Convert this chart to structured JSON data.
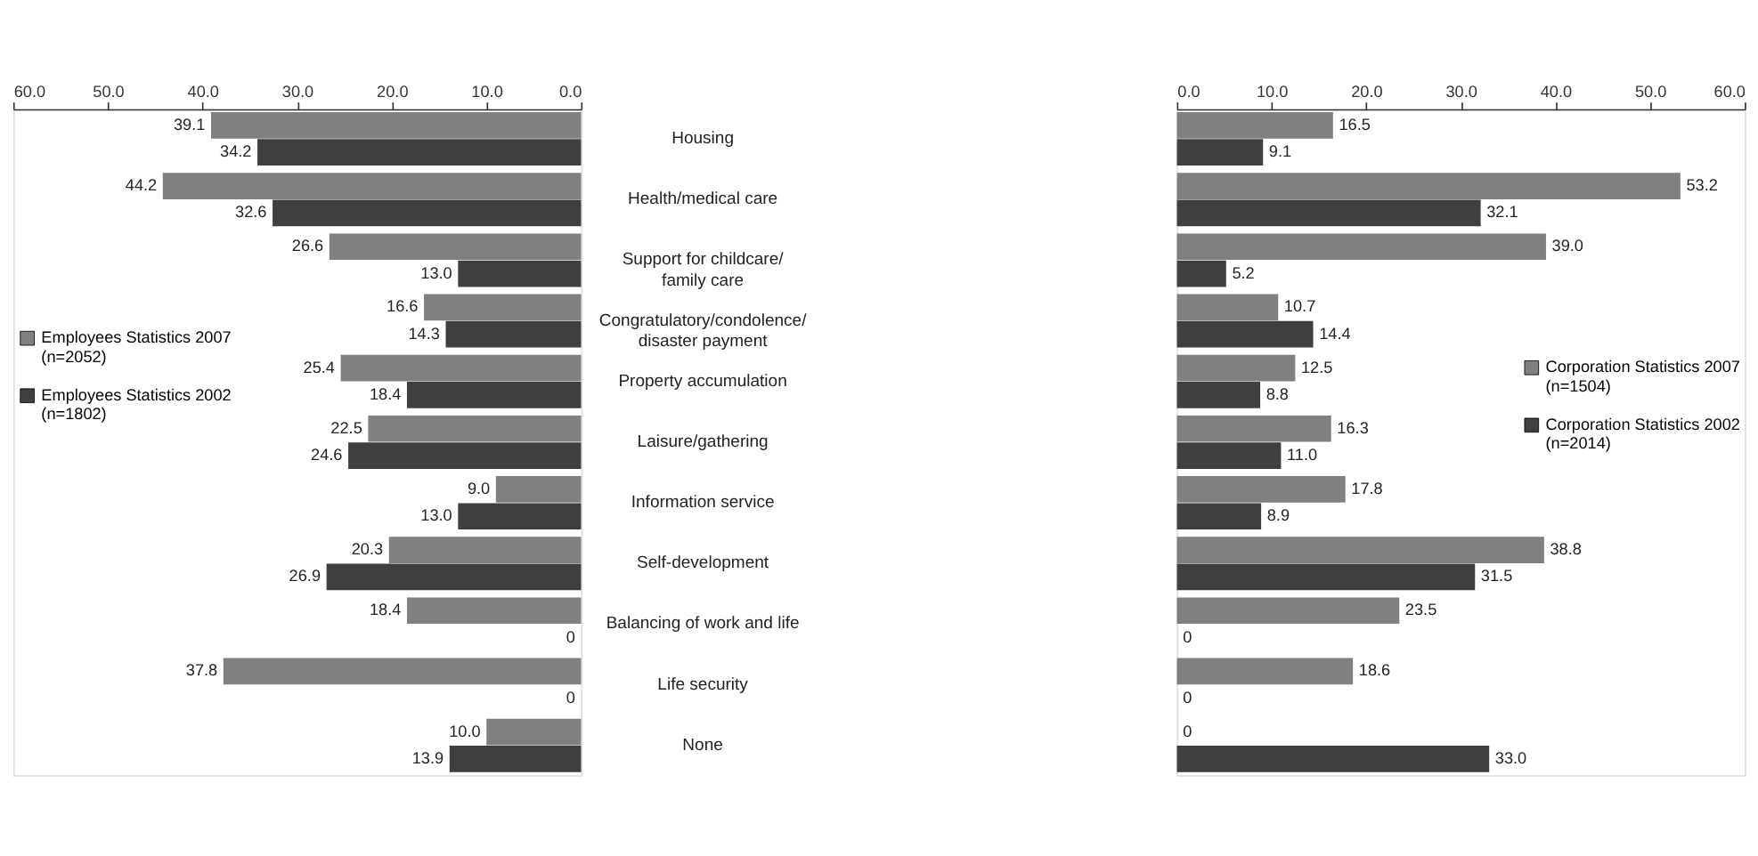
{
  "chart_data": [
    {
      "type": "bar",
      "orientation": "horizontal",
      "categories": [
        "Housing",
        "Health/medical care",
        "Support for childcare/ family care",
        "Congratulatory/condolence/ disaster payment",
        "Property accumulation",
        "Laisure/gathering",
        "Information service",
        "Self-development",
        "Balancing of work and life",
        "Life security",
        "None"
      ],
      "series": [
        {
          "name": "Employees Statistics 2007 (n=2052)",
          "color": "#808080",
          "values": [
            39.1,
            44.2,
            26.6,
            16.6,
            25.4,
            22.5,
            9.0,
            20.3,
            18.4,
            37.8,
            10.0
          ],
          "value_labels": [
            "39.1",
            "44.2",
            "26.6",
            "16.6",
            "25.4",
            "22.5",
            "9.0",
            "20.3",
            "18.4",
            "37.8",
            "10.0"
          ]
        },
        {
          "name": "Employees Statistics 2002 (n=1802)",
          "color": "#3f3f3f",
          "values": [
            34.2,
            32.6,
            13.0,
            14.3,
            18.4,
            24.6,
            13.0,
            26.9,
            0,
            0,
            13.9
          ],
          "value_labels": [
            "34.2",
            "32.6",
            "13.0",
            "14.3",
            "18.4",
            "24.6",
            "13.0",
            "26.9",
            "0",
            "0",
            "13.9"
          ]
        }
      ],
      "xlim": [
        60,
        0
      ],
      "xticks": [
        {
          "value": 60,
          "label": "60.0"
        },
        {
          "value": 50,
          "label": "50.0"
        },
        {
          "value": 40,
          "label": "40.0"
        },
        {
          "value": 30,
          "label": "30.0"
        },
        {
          "value": 20,
          "label": "20.0"
        },
        {
          "value": 10,
          "label": "10.0"
        },
        {
          "value": 0,
          "label": "0.0"
        }
      ],
      "grid": false,
      "legend": "left"
    },
    {
      "type": "bar",
      "orientation": "horizontal",
      "categories": [
        null,
        null,
        null,
        null,
        null,
        null,
        null,
        null,
        null,
        null,
        null
      ],
      "series": [
        {
          "name": "Corporation Statistics 2007 (n=1504)",
          "color": "#808080",
          "values": [
            16.5,
            53.2,
            39.0,
            10.7,
            12.5,
            16.3,
            17.8,
            38.8,
            23.5,
            18.6,
            0
          ],
          "value_labels": [
            "16.5",
            "53.2",
            "39.0",
            "10.7",
            "12.5",
            "16.3",
            "17.8",
            "38.8",
            "23.5",
            "18.6",
            "0"
          ]
        },
        {
          "name": "Corporation Statistics 2002 (n=2014)",
          "color": "#3f3f3f",
          "values": [
            9.1,
            32.1,
            5.2,
            14.4,
            8.8,
            11.0,
            8.9,
            31.5,
            0,
            0,
            33.0
          ],
          "value_labels": [
            "9.1",
            "32.1",
            "5.2",
            "14.4",
            "8.8",
            "11.0",
            "8.9",
            "31.5",
            "0",
            "0",
            "33.0"
          ]
        }
      ],
      "xlim": [
        0,
        60
      ],
      "xticks": [
        {
          "value": 0,
          "label": "0.0"
        },
        {
          "value": 10,
          "label": "10.0"
        },
        {
          "value": 20,
          "label": "20.0"
        },
        {
          "value": 30,
          "label": "30.0"
        },
        {
          "value": 40,
          "label": "40.0"
        },
        {
          "value": 50,
          "label": "50.0"
        },
        {
          "value": 60,
          "label": "60.0"
        }
      ],
      "grid": false,
      "legend": "right"
    }
  ]
}
